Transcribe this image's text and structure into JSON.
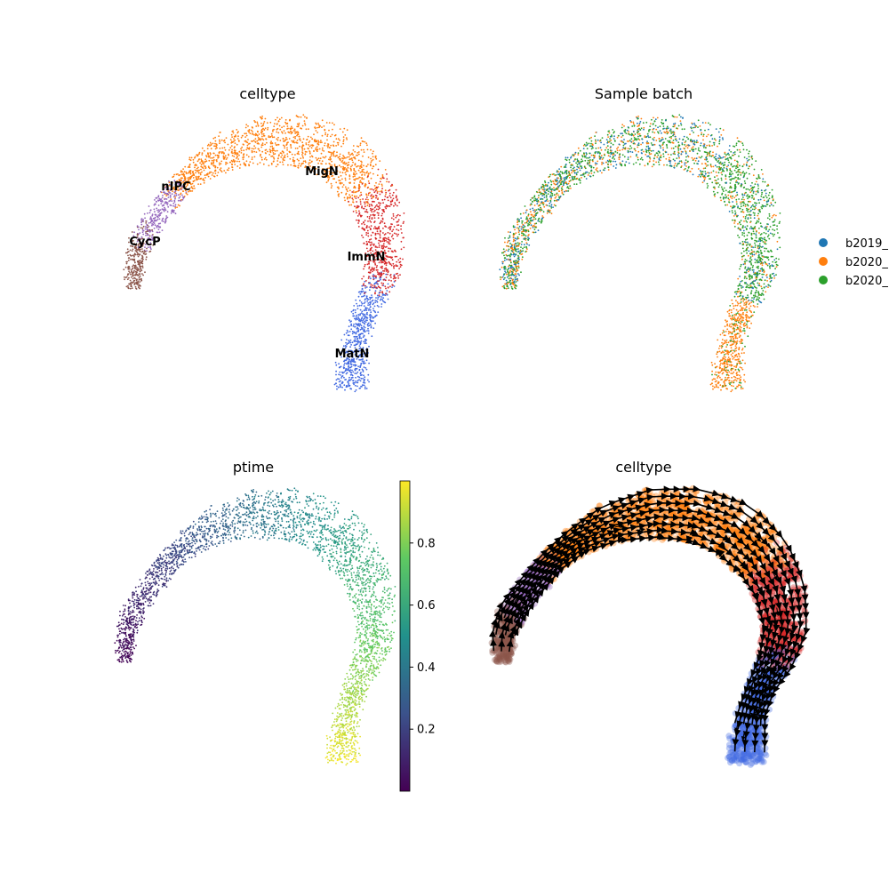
{
  "chart_data": [
    {
      "type": "scatter",
      "title": "celltype",
      "color_by": "celltype",
      "cluster_labels": [
        "CycP",
        "nIPC",
        "MigN",
        "ImmN",
        "MatN"
      ],
      "cluster_colors": {
        "CycP": "#8c564b",
        "nIPC": "#9467bd",
        "MigN": "#ff7f0e",
        "ImmN": "#d62728",
        "MatN": "#4169e1"
      },
      "grid": false,
      "legend": "on-data"
    },
    {
      "type": "scatter",
      "title": "Sample batch",
      "color_by": "sample batch",
      "legend_entries": [
        {
          "name": "b2019_",
          "color": "#1f77b4"
        },
        {
          "name": "b2020_",
          "color": "#ff7f0e"
        },
        {
          "name": "b2020_",
          "color": "#2ca02c"
        }
      ],
      "grid": false,
      "legend": "right"
    },
    {
      "type": "scatter",
      "title": "ptime",
      "color_by": "ptime",
      "colormap": "viridis",
      "colorbar_ticks": [
        "0.2",
        "0.4",
        "0.6",
        "0.8"
      ],
      "colorbar_range": [
        0.0,
        1.0
      ],
      "grid": false,
      "legend": "colorbar-right"
    },
    {
      "type": "scatter",
      "title": "celltype",
      "color_by": "celltype",
      "overlay": "velocity streamlines",
      "grid": false,
      "legend": "none"
    }
  ]
}
